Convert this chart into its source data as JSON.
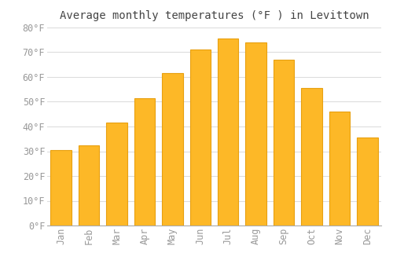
{
  "title": "Average monthly temperatures (°F ) in Levittown",
  "months": [
    "Jan",
    "Feb",
    "Mar",
    "Apr",
    "May",
    "Jun",
    "Jul",
    "Aug",
    "Sep",
    "Oct",
    "Nov",
    "Dec"
  ],
  "temperatures": [
    30.5,
    32.5,
    41.5,
    51.5,
    61.5,
    71.0,
    75.5,
    74.0,
    67.0,
    55.5,
    46.0,
    35.5
  ],
  "bar_color": "#FDB827",
  "bar_edge_color": "#E8A010",
  "background_color": "#FFFFFF",
  "plot_bg_color": "#FFFFFF",
  "grid_color": "#DDDDDD",
  "text_color": "#999999",
  "title_color": "#444444",
  "ylim": [
    0,
    80
  ],
  "yticks": [
    0,
    10,
    20,
    30,
    40,
    50,
    60,
    70,
    80
  ],
  "title_fontsize": 10,
  "tick_fontsize": 8.5,
  "bar_width": 0.75
}
